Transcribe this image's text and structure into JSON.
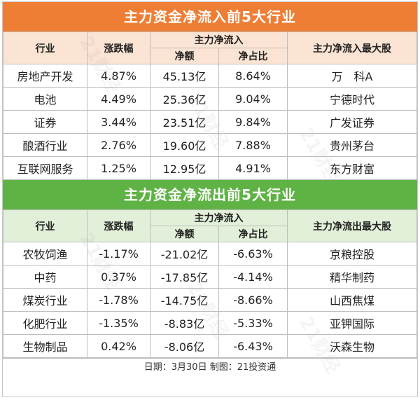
{
  "inflow": {
    "title": "主力资金净流入前5大行业",
    "headers": {
      "industry": "行业",
      "change": "涨跌幅",
      "main_flow": "主力净流入",
      "net_amount": "净额",
      "net_ratio": "净占比",
      "top_stock": "主力净流入最大股"
    },
    "rows": [
      {
        "industry": "房地产开发",
        "change": "4.87%",
        "net_amount": "45.13亿",
        "net_ratio": "8.64%",
        "top_stock": "万　科A"
      },
      {
        "industry": "电池",
        "change": "4.49%",
        "net_amount": "25.36亿",
        "net_ratio": "9.04%",
        "top_stock": "宁德时代"
      },
      {
        "industry": "证券",
        "change": "3.44%",
        "net_amount": "23.51亿",
        "net_ratio": "9.84%",
        "top_stock": "广发证券"
      },
      {
        "industry": "酿酒行业",
        "change": "2.76%",
        "net_amount": "19.60亿",
        "net_ratio": "7.88%",
        "top_stock": "贵州茅台"
      },
      {
        "industry": "互联网服务",
        "change": "1.25%",
        "net_amount": "12.95亿",
        "net_ratio": "4.91%",
        "top_stock": "东方财富"
      }
    ]
  },
  "outflow": {
    "title": "主力资金净流出前5大行业",
    "headers": {
      "industry": "行业",
      "change": "涨跌幅",
      "main_flow": "主力净流入",
      "net_amount": "净额",
      "net_ratio": "净占比",
      "top_stock": "主力净流出最大股"
    },
    "rows": [
      {
        "industry": "农牧饲渔",
        "change": "-1.17%",
        "net_amount": "-21.02亿",
        "net_ratio": "-6.63%",
        "top_stock": "京粮控股"
      },
      {
        "industry": "中药",
        "change": "0.37%",
        "net_amount": "-17.85亿",
        "net_ratio": "-4.14%",
        "top_stock": "精华制药"
      },
      {
        "industry": "煤炭行业",
        "change": "-1.78%",
        "net_amount": "-14.75亿",
        "net_ratio": "-8.66%",
        "top_stock": "山西焦煤"
      },
      {
        "industry": "化肥行业",
        "change": "-1.35%",
        "net_amount": "-8.83亿",
        "net_ratio": "-5.33%",
        "top_stock": "亚钾国际"
      },
      {
        "industry": "生物制品",
        "change": "0.42%",
        "net_amount": "-8.06亿",
        "net_ratio": "-6.43%",
        "top_stock": "沃森生物"
      }
    ]
  },
  "footer": "日期：3月30日 制图：21投资通",
  "watermark": "21财经",
  "colors": {
    "inflow_accent": "#ef7e35",
    "outflow_accent": "#5fb345"
  }
}
